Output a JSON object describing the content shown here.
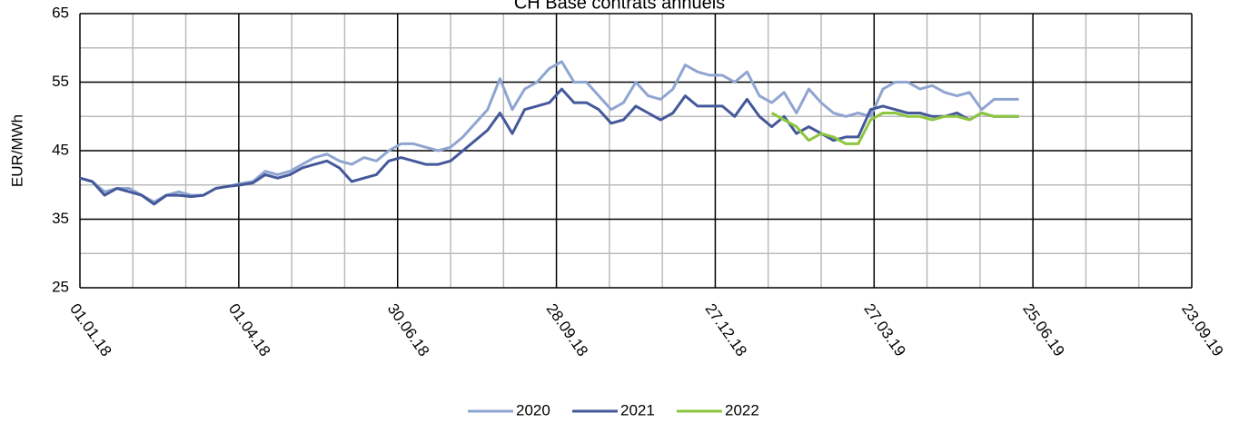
{
  "chart_data": {
    "type": "line",
    "title": "CH Base contrats annuels",
    "y_label": "EUR/MWh",
    "x": [
      "2018-01-01",
      "2018-01-08",
      "2018-01-15",
      "2018-01-22",
      "2018-01-29",
      "2018-02-05",
      "2018-02-12",
      "2018-02-19",
      "2018-02-26",
      "2018-03-05",
      "2018-03-12",
      "2018-03-19",
      "2018-03-26",
      "2018-04-02",
      "2018-04-09",
      "2018-04-16",
      "2018-04-23",
      "2018-04-30",
      "2018-05-07",
      "2018-05-14",
      "2018-05-21",
      "2018-05-28",
      "2018-06-04",
      "2018-06-11",
      "2018-06-18",
      "2018-06-25",
      "2018-07-02",
      "2018-07-09",
      "2018-07-16",
      "2018-07-23",
      "2018-07-30",
      "2018-08-06",
      "2018-08-13",
      "2018-08-20",
      "2018-08-27",
      "2018-09-03",
      "2018-09-10",
      "2018-09-17",
      "2018-09-24",
      "2018-10-01",
      "2018-10-08",
      "2018-10-15",
      "2018-10-22",
      "2018-10-29",
      "2018-11-05",
      "2018-11-12",
      "2018-11-19",
      "2018-11-26",
      "2018-12-03",
      "2018-12-10",
      "2018-12-17",
      "2018-12-24",
      "2018-12-31",
      "2019-01-07",
      "2019-01-14",
      "2019-01-21",
      "2019-01-28",
      "2019-02-04",
      "2019-02-11",
      "2019-02-18",
      "2019-02-25",
      "2019-03-04",
      "2019-03-11",
      "2019-03-18",
      "2019-03-25",
      "2019-04-01",
      "2019-04-08",
      "2019-04-15",
      "2019-04-22",
      "2019-04-29",
      "2019-05-06",
      "2019-05-13",
      "2019-05-20",
      "2019-05-27",
      "2019-06-03",
      "2019-06-10",
      "2019-06-17"
    ],
    "series": [
      {
        "name": "2020",
        "color": "#8fa5d1",
        "values": [
          41,
          40.5,
          39,
          39.5,
          39.5,
          38.5,
          37.5,
          38.5,
          39,
          38.5,
          38.5,
          39.5,
          39.8,
          40.2,
          40.5,
          42,
          41.5,
          42,
          43,
          44,
          44.5,
          43.5,
          43,
          44,
          43.5,
          45,
          46,
          46,
          45.5,
          45,
          45.5,
          47,
          49,
          51,
          55.5,
          51,
          54,
          55,
          57,
          58,
          55,
          55,
          53,
          51,
          52,
          55,
          53,
          52.5,
          54,
          57.5,
          56.5,
          56,
          56,
          55,
          56.5,
          53,
          52,
          53.5,
          50.5,
          54,
          52,
          50.5,
          50,
          50.5,
          50,
          54,
          55,
          55,
          54,
          54.5,
          53.5,
          53,
          53.5,
          51,
          52.5,
          52.5,
          52.5
        ]
      },
      {
        "name": "2021",
        "color": "#44589a",
        "values": [
          41,
          40.5,
          38.5,
          39.5,
          39,
          38.5,
          37.2,
          38.5,
          38.5,
          38.3,
          38.5,
          39.5,
          39.8,
          40,
          40.3,
          41.5,
          41,
          41.5,
          42.5,
          43,
          43.5,
          42.5,
          40.5,
          41,
          41.5,
          43.5,
          44,
          43.5,
          43,
          43,
          43.5,
          45,
          46.5,
          48,
          50.5,
          47.5,
          51,
          51.5,
          52,
          54,
          52,
          52,
          51,
          49,
          49.5,
          51.5,
          50.5,
          49.5,
          50.5,
          53,
          51.5,
          51.5,
          51.5,
          50,
          52.5,
          50,
          48.5,
          50,
          47.5,
          48.5,
          47.5,
          46.5,
          47,
          47,
          51,
          51.5,
          51,
          50.5,
          50.5,
          50,
          50,
          50.5,
          49.5,
          50.5,
          50,
          50,
          50
        ]
      },
      {
        "name": "2022",
        "color": "#8dc63f",
        "values": [
          null,
          null,
          null,
          null,
          null,
          null,
          null,
          null,
          null,
          null,
          null,
          null,
          null,
          null,
          null,
          null,
          null,
          null,
          null,
          null,
          null,
          null,
          null,
          null,
          null,
          null,
          null,
          null,
          null,
          null,
          null,
          null,
          null,
          null,
          null,
          null,
          null,
          null,
          null,
          null,
          null,
          null,
          null,
          null,
          null,
          null,
          null,
          null,
          null,
          null,
          null,
          null,
          null,
          null,
          null,
          null,
          50.5,
          49.5,
          48.5,
          46.5,
          47.5,
          47,
          46,
          46,
          49.5,
          50.5,
          50.5,
          50,
          50,
          49.5,
          50,
          50,
          49.5,
          50.5,
          50,
          50,
          50
        ]
      }
    ],
    "ylim": [
      25,
      65
    ],
    "yticks": [
      25,
      35,
      45,
      55,
      65
    ],
    "xlim": [
      "2018-01-01",
      "2019-09-23"
    ],
    "xticks": [
      {
        "value": "2018-01-01",
        "label": "01.01.18"
      },
      {
        "value": "2018-04-01",
        "label": "01.04.18"
      },
      {
        "value": "2018-06-30",
        "label": "30.06.18"
      },
      {
        "value": "2018-09-28",
        "label": "28.09.18"
      },
      {
        "value": "2018-12-27",
        "label": "27.12.18"
      },
      {
        "value": "2019-03-27",
        "label": "27.03.19"
      },
      {
        "value": "2019-06-25",
        "label": "25.06.19"
      },
      {
        "value": "2019-09-23",
        "label": "23.09.19"
      }
    ],
    "grid": true,
    "minor_grid": true,
    "legend": "bottom"
  }
}
